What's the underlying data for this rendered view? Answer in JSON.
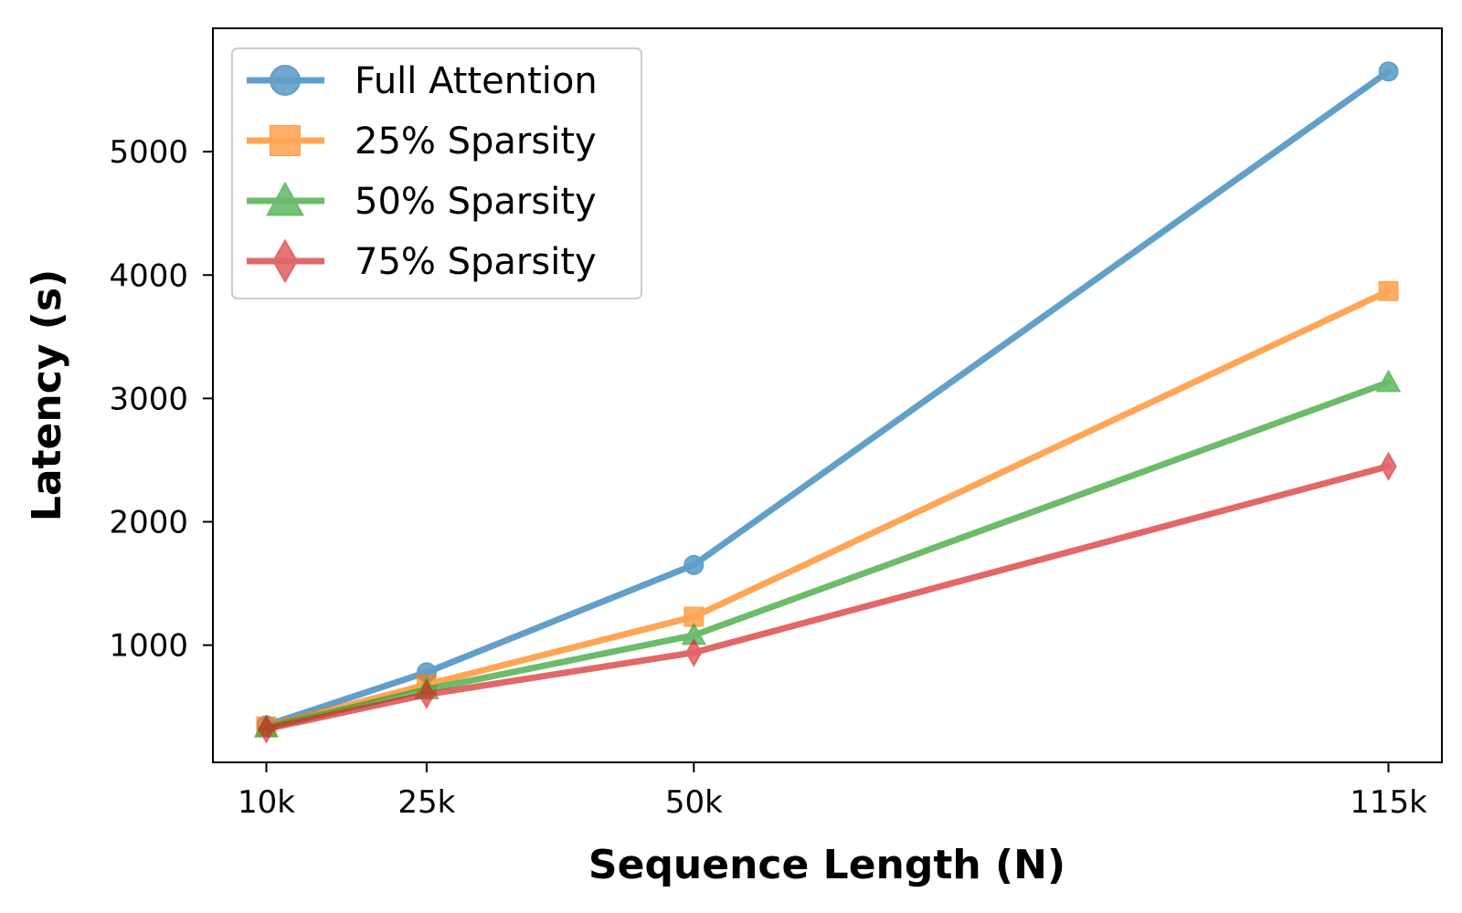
{
  "chart_data": {
    "type": "line",
    "title": "",
    "xlabel": "Sequence Length (N)",
    "ylabel": "Latency (s)",
    "x": [
      10,
      25,
      50,
      115
    ],
    "x_tick_labels": [
      "10k",
      "25k",
      "50k",
      "115k"
    ],
    "xlim": [
      5,
      120
    ],
    "ylim": [
      50,
      6000
    ],
    "y_ticks": [
      1000,
      2000,
      3000,
      4000,
      5000
    ],
    "y_tick_labels": [
      "1000",
      "2000",
      "3000",
      "4000",
      "5000"
    ],
    "grid": false,
    "legend_position": "top-left",
    "series": [
      {
        "name": "Full Attention",
        "marker": "circle",
        "color": "#1f77b4",
        "values": [
          350,
          780,
          1650,
          5650
        ]
      },
      {
        "name": "25% Sparsity",
        "marker": "square",
        "color": "#ff7f0e",
        "values": [
          340,
          680,
          1230,
          3870
        ]
      },
      {
        "name": "50% Sparsity",
        "marker": "triangle",
        "color": "#2ca02c",
        "values": [
          330,
          640,
          1080,
          3130
        ]
      },
      {
        "name": "75% Sparsity",
        "marker": "diamond",
        "color": "#d62728",
        "values": [
          320,
          600,
          940,
          2450
        ]
      }
    ]
  }
}
